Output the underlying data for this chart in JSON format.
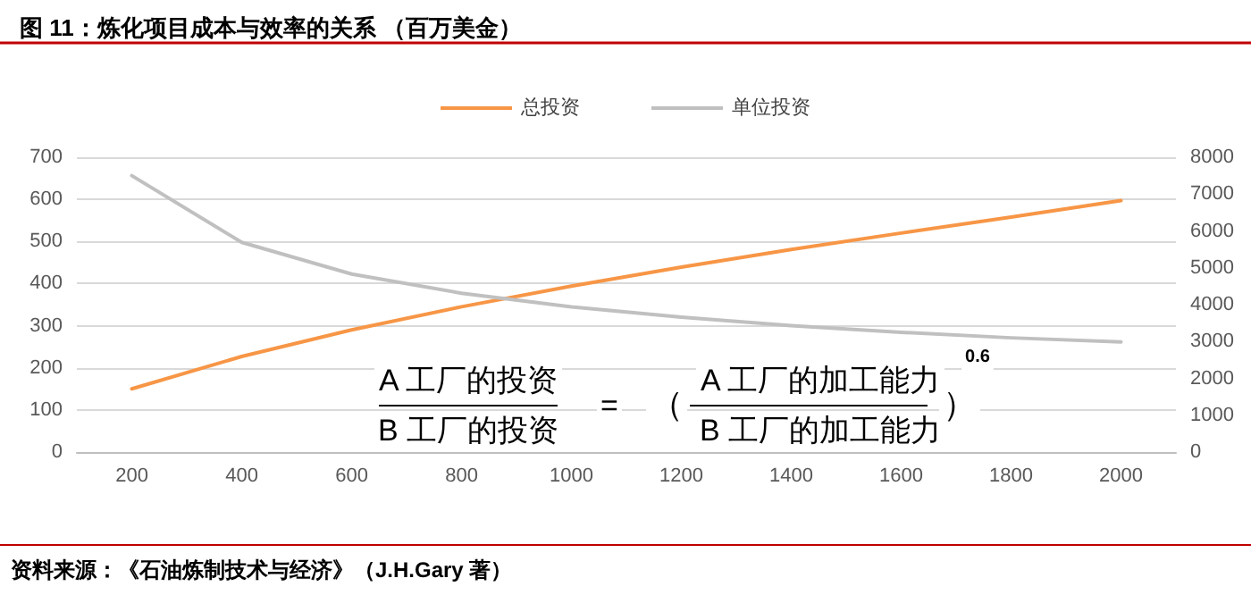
{
  "chart_data": {
    "type": "line",
    "title": "图 11：炼化项目成本与效率的关系 （百万美金）",
    "categories": [
      "200",
      "400",
      "600",
      "800",
      "1000",
      "1200",
      "1400",
      "1600",
      "1800",
      "2000"
    ],
    "series": [
      {
        "name": "总投资",
        "color": "#f79646",
        "values": [
          150,
          227,
          290,
          345,
          394,
          439,
          481,
          520,
          558,
          597
        ]
      },
      {
        "name": "单位投资",
        "color": "#c0c0c0",
        "axis": "y2",
        "values": [
          7500,
          5690,
          4830,
          4310,
          3940,
          3660,
          3430,
          3250,
          3100,
          2990
        ]
      }
    ],
    "ylim": [
      0,
      700
    ],
    "yticks": [
      0,
      100,
      200,
      300,
      400,
      500,
      600,
      700
    ],
    "y2lim": [
      0,
      8000
    ],
    "y2ticks": [
      0,
      1000,
      2000,
      3000,
      4000,
      5000,
      6000,
      7000,
      8000
    ],
    "grid": "y",
    "legend": "top",
    "marker": "none",
    "line_style": "solid",
    "annotations": [
      "资料来源：《石油炼制技术与经济》（J.H.Gary 著）",
      "A 工厂的投资",
      "B 工厂的投资",
      "=",
      "（",
      "A 工厂的加工能力",
      "B 工厂的加工能力",
      "）",
      "0.6"
    ]
  }
}
